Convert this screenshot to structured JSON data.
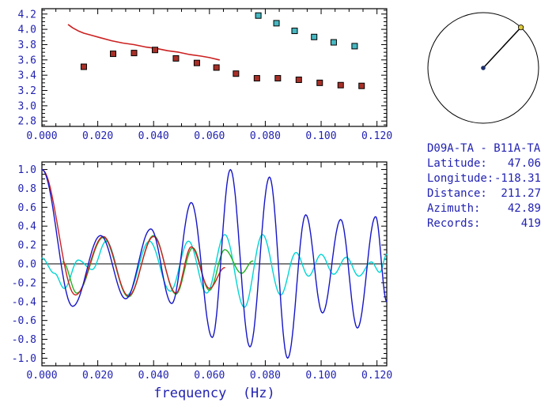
{
  "colors": {
    "text": "#2222b2",
    "frame": "#000000"
  },
  "info": {
    "title": "D09A-TA - B11A-TA",
    "lines": [
      {
        "label": "Latitude:",
        "value": "47.06"
      },
      {
        "label": "Longitude:",
        "value": "-118.31"
      },
      {
        "label": "Distance:",
        "value": "211.27"
      },
      {
        "label": "Azimuth:",
        "value": "42.89"
      },
      {
        "label": "Records:",
        "value": "419"
      }
    ]
  },
  "azimuth_dial": {
    "azimuth_deg": 42.89,
    "circle_color": "#000000",
    "center_dot_color": "#1c2e6b",
    "marker_color": "#ddc83c"
  },
  "chart_data": [
    {
      "type": "line+scatter",
      "name": "dispersion-panel",
      "title": "",
      "xlabel": "",
      "ylabel": "",
      "xlim": [
        0,
        0.1235
      ],
      "ylim": [
        2.73,
        4.27
      ],
      "x_ticks": [
        0,
        0.02,
        0.04,
        0.06,
        0.08,
        0.1,
        0.12
      ],
      "x_tick_labels": [
        "0.000",
        "0.020",
        "0.040",
        "0.060",
        "0.080",
        "0.100",
        "0.120"
      ],
      "y_ticks": [
        2.8,
        3.0,
        3.2,
        3.4,
        3.6,
        3.8,
        4.0,
        4.2
      ],
      "y_tick_labels": [
        "2.8",
        "3.0",
        "3.2",
        "3.4",
        "3.6",
        "3.8",
        "4.0",
        "4.2"
      ],
      "x_minor_step": 0.005,
      "y_minor_step": 0.05,
      "grid": false,
      "zero_line": false,
      "series": [
        {
          "name": "phase-velocity-curve",
          "type": "line",
          "color": "#cc2020",
          "width": 1.6,
          "points": [
            [
              0.0095,
              4.06
            ],
            [
              0.011,
              4.02
            ],
            [
              0.013,
              3.98
            ],
            [
              0.015,
              3.95
            ],
            [
              0.018,
              3.92
            ],
            [
              0.021,
              3.89
            ],
            [
              0.025,
              3.85
            ],
            [
              0.029,
              3.82
            ],
            [
              0.033,
              3.8
            ],
            [
              0.037,
              3.77
            ],
            [
              0.041,
              3.75
            ],
            [
              0.045,
              3.72
            ],
            [
              0.049,
              3.7
            ],
            [
              0.053,
              3.67
            ],
            [
              0.057,
              3.65
            ],
            [
              0.06,
              3.63
            ],
            [
              0.0635,
              3.6
            ]
          ]
        },
        {
          "name": "red-square-points",
          "type": "scatter",
          "color": "#a83028",
          "points": [
            [
              0.015,
              3.51
            ],
            [
              0.0255,
              3.68
            ],
            [
              0.033,
              3.69
            ],
            [
              0.0405,
              3.73
            ],
            [
              0.048,
              3.62
            ],
            [
              0.0555,
              3.56
            ],
            [
              0.0625,
              3.5
            ],
            [
              0.0695,
              3.42
            ],
            [
              0.077,
              3.36
            ],
            [
              0.0845,
              3.36
            ],
            [
              0.092,
              3.34
            ],
            [
              0.0995,
              3.3
            ],
            [
              0.107,
              3.27
            ],
            [
              0.1145,
              3.26
            ]
          ]
        },
        {
          "name": "cyan-square-points",
          "type": "scatter",
          "color": "#46b8c2",
          "points": [
            [
              0.0775,
              4.18
            ],
            [
              0.084,
              4.08
            ],
            [
              0.0905,
              3.98
            ],
            [
              0.0975,
              3.9
            ],
            [
              0.1045,
              3.83
            ],
            [
              0.112,
              3.78
            ]
          ]
        }
      ]
    },
    {
      "type": "line",
      "name": "spectra-panel",
      "title": "",
      "xlabel": "frequency  (Hz)",
      "ylabel": "",
      "xlim": [
        0,
        0.1235
      ],
      "ylim": [
        -1.08,
        1.08
      ],
      "x_ticks": [
        0,
        0.02,
        0.04,
        0.06,
        0.08,
        0.1,
        0.12
      ],
      "x_tick_labels": [
        "0.000",
        "0.020",
        "0.040",
        "0.060",
        "0.080",
        "0.100",
        "0.120"
      ],
      "y_ticks": [
        -1.0,
        -0.8,
        -0.6,
        -0.4,
        -0.2,
        0.0,
        0.2,
        0.4,
        0.6,
        0.8,
        1.0
      ],
      "y_tick_labels": [
        "-1.0",
        "-0.8",
        "-0.6",
        "-0.4",
        "-0.2",
        "0.0",
        "0.2",
        "0.4",
        "0.6",
        "0.8",
        "1.0"
      ],
      "x_minor_step": 0.005,
      "y_minor_step": 0.05,
      "grid": false,
      "zero_line": true,
      "series": [
        {
          "name": "cyan-waveform",
          "type": "wave",
          "color": "#00d5d5",
          "width": 1.4,
          "points": [
            [
              0,
              0.06
            ],
            [
              0.0045,
              -0.1
            ],
            [
              0.008,
              -0.26
            ],
            [
              0.013,
              0.04
            ],
            [
              0.018,
              -0.06
            ],
            [
              0.023,
              0.24
            ],
            [
              0.0305,
              -0.33
            ],
            [
              0.0385,
              0.24
            ],
            [
              0.046,
              -0.29
            ],
            [
              0.0525,
              0.24
            ],
            [
              0.059,
              -0.31
            ],
            [
              0.0655,
              0.31
            ],
            [
              0.0725,
              -0.46
            ],
            [
              0.079,
              0.31
            ],
            [
              0.0855,
              -0.33
            ],
            [
              0.091,
              0.12
            ],
            [
              0.0955,
              -0.13
            ],
            [
              0.1,
              0.1
            ],
            [
              0.1045,
              -0.11
            ],
            [
              0.109,
              0.07
            ],
            [
              0.1135,
              -0.13
            ],
            [
              0.118,
              0.02
            ],
            [
              0.121,
              -0.09
            ],
            [
              0.1235,
              0.1
            ]
          ]
        },
        {
          "name": "green-waveform",
          "type": "wave",
          "color": "#23b223",
          "width": 1.4,
          "points": [
            [
              0.0075,
              0.02
            ],
            [
              0.0125,
              -0.31
            ],
            [
              0.022,
              0.28
            ],
            [
              0.031,
              -0.35
            ],
            [
              0.04,
              0.3
            ],
            [
              0.048,
              -0.32
            ],
            [
              0.054,
              0.17
            ],
            [
              0.06,
              -0.28
            ],
            [
              0.0655,
              0.15
            ],
            [
              0.0715,
              -0.1
            ],
            [
              0.0755,
              0.03
            ]
          ]
        },
        {
          "name": "red-waveform",
          "type": "wave",
          "color": "#cc2020",
          "width": 1.4,
          "points": [
            [
              0,
              1.0
            ],
            [
              0.012,
              -0.33
            ],
            [
              0.022,
              0.29
            ],
            [
              0.031,
              -0.34
            ],
            [
              0.04,
              0.29
            ],
            [
              0.048,
              -0.31
            ],
            [
              0.0535,
              0.18
            ],
            [
              0.06,
              -0.26
            ],
            [
              0.0655,
              -0.04
            ]
          ]
        },
        {
          "name": "blue-waveform",
          "type": "wave",
          "color": "#1616c8",
          "width": 1.4,
          "points": [
            [
              0,
              1.0
            ],
            [
              0.011,
              -0.45
            ],
            [
              0.021,
              0.3
            ],
            [
              0.03,
              -0.37
            ],
            [
              0.039,
              0.37
            ],
            [
              0.0465,
              -0.42
            ],
            [
              0.0535,
              0.65
            ],
            [
              0.061,
              -0.78
            ],
            [
              0.0675,
              1.0
            ],
            [
              0.0745,
              -0.88
            ],
            [
              0.0815,
              0.92
            ],
            [
              0.088,
              -1.0
            ],
            [
              0.0945,
              0.52
            ],
            [
              0.1005,
              -0.52
            ],
            [
              0.107,
              0.47
            ],
            [
              0.113,
              -0.68
            ],
            [
              0.1195,
              0.5
            ],
            [
              0.1235,
              -0.4
            ]
          ]
        }
      ]
    }
  ]
}
